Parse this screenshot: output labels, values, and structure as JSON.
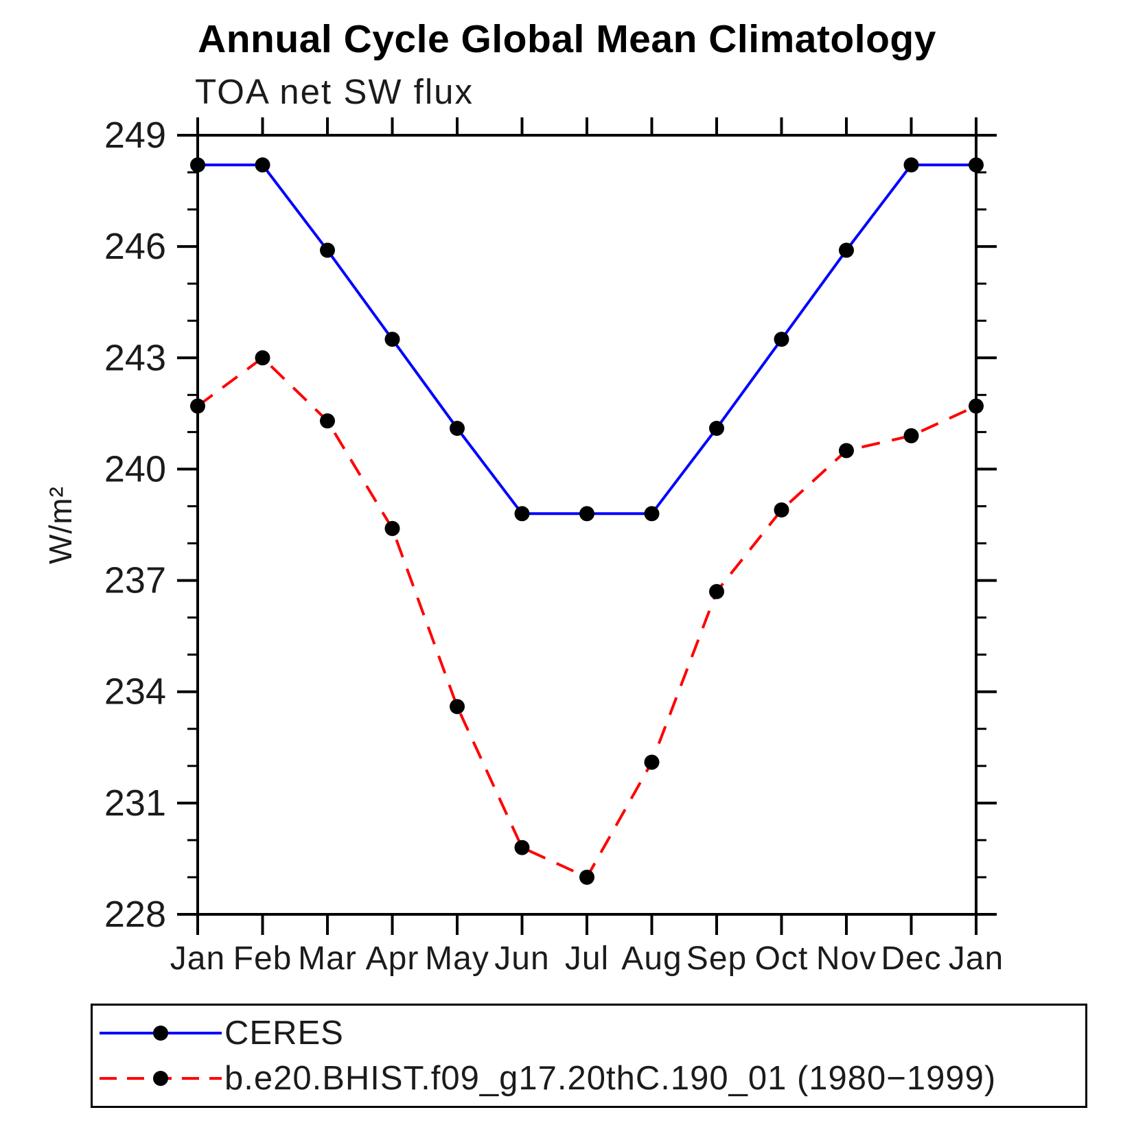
{
  "title": "Annual Cycle Global Mean Climatology",
  "subtitle": "TOA net SW flux",
  "ylabel": "W/m²",
  "chart_data": {
    "type": "line",
    "categories": [
      "Jan",
      "Feb",
      "Mar",
      "Apr",
      "May",
      "Jun",
      "Jul",
      "Aug",
      "Sep",
      "Oct",
      "Nov",
      "Dec",
      "Jan"
    ],
    "series": [
      {
        "name": "CERES",
        "line_color": "#0000ff",
        "line_style": "solid",
        "marker": "circle",
        "marker_color": "#000000",
        "values": [
          248.2,
          248.2,
          245.9,
          243.5,
          241.1,
          238.8,
          238.8,
          238.8,
          241.1,
          243.5,
          245.9,
          248.2,
          248.2
        ]
      },
      {
        "name": "b.e20.BHIST.f09_g17.20thC.190_01 (1980−1999)",
        "line_color": "#ff0000",
        "line_style": "dashed",
        "marker": "circle",
        "marker_color": "#000000",
        "values": [
          241.7,
          243.0,
          241.3,
          238.4,
          233.6,
          229.8,
          229.0,
          232.1,
          236.7,
          238.9,
          240.5,
          240.9,
          241.7
        ]
      }
    ],
    "ylim": [
      228,
      249
    ],
    "ytick_major": [
      228,
      231,
      234,
      237,
      240,
      243,
      246,
      249
    ],
    "ytick_minor_step": 1,
    "grid": false,
    "legend_position": "bottom-box"
  }
}
